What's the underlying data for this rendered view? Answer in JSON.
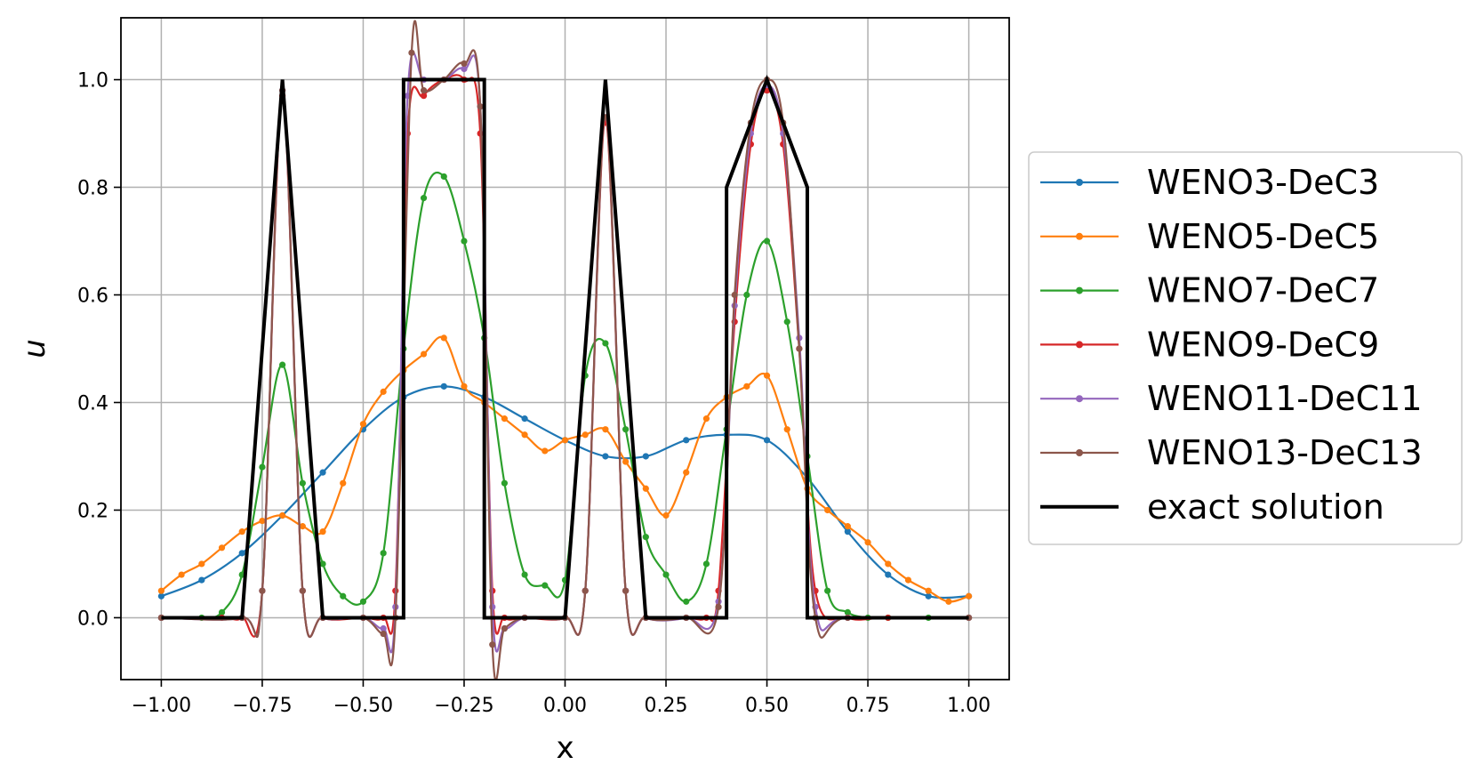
{
  "chart_data": {
    "type": "line",
    "xlabel": "x",
    "ylabel": "u",
    "xlim": [
      -1.1,
      1.1
    ],
    "ylim": [
      -0.115,
      1.115
    ],
    "xticks": [
      -1.0,
      -0.75,
      -0.5,
      -0.25,
      0.0,
      0.25,
      0.5,
      0.75,
      1.0
    ],
    "xtick_labels": [
      "−1.00",
      "−0.75",
      "−0.50",
      "−0.25",
      "0.00",
      "0.25",
      "0.50",
      "0.75",
      "1.00"
    ],
    "yticks": [
      0.0,
      0.2,
      0.4,
      0.6,
      0.8,
      1.0
    ],
    "ytick_labels": [
      "0.0",
      "0.2",
      "0.4",
      "0.6",
      "0.8",
      "1.0"
    ],
    "grid": true,
    "legend": "outside-right",
    "series": [
      {
        "name": "WENO3-DeC3",
        "color": "#1f77b4",
        "style": "dots",
        "x": [
          -1.0,
          -0.9,
          -0.8,
          -0.7,
          -0.6,
          -0.5,
          -0.4,
          -0.3,
          -0.2,
          -0.1,
          0.0,
          0.1,
          0.2,
          0.3,
          0.4,
          0.5,
          0.6,
          0.7,
          0.8,
          0.9,
          1.0
        ],
        "y": [
          0.04,
          0.07,
          0.12,
          0.19,
          0.27,
          0.35,
          0.41,
          0.43,
          0.41,
          0.37,
          0.33,
          0.3,
          0.3,
          0.33,
          0.34,
          0.33,
          0.26,
          0.16,
          0.08,
          0.04,
          0.04
        ]
      },
      {
        "name": "WENO5-DeC5",
        "color": "#ff7f0e",
        "style": "dots",
        "x": [
          -1.0,
          -0.95,
          -0.9,
          -0.85,
          -0.8,
          -0.75,
          -0.7,
          -0.65,
          -0.6,
          -0.55,
          -0.5,
          -0.45,
          -0.4,
          -0.35,
          -0.3,
          -0.25,
          -0.2,
          -0.15,
          -0.1,
          -0.05,
          0.0,
          0.05,
          0.1,
          0.15,
          0.2,
          0.25,
          0.3,
          0.35,
          0.4,
          0.45,
          0.5,
          0.55,
          0.6,
          0.65,
          0.7,
          0.75,
          0.8,
          0.85,
          0.9,
          0.95,
          1.0
        ],
        "y": [
          0.05,
          0.08,
          0.1,
          0.13,
          0.16,
          0.18,
          0.19,
          0.17,
          0.16,
          0.25,
          0.36,
          0.42,
          0.46,
          0.49,
          0.52,
          0.43,
          0.4,
          0.37,
          0.34,
          0.31,
          0.33,
          0.34,
          0.35,
          0.29,
          0.24,
          0.19,
          0.27,
          0.37,
          0.41,
          0.43,
          0.45,
          0.35,
          0.24,
          0.2,
          0.17,
          0.14,
          0.1,
          0.07,
          0.05,
          0.03,
          0.04
        ]
      },
      {
        "name": "WENO7-DeC7",
        "color": "#2ca02c",
        "style": "dots",
        "x": [
          -1.0,
          -0.9,
          -0.85,
          -0.8,
          -0.75,
          -0.7,
          -0.65,
          -0.6,
          -0.55,
          -0.5,
          -0.45,
          -0.4,
          -0.35,
          -0.3,
          -0.25,
          -0.2,
          -0.15,
          -0.1,
          -0.05,
          0.0,
          0.05,
          0.1,
          0.15,
          0.2,
          0.25,
          0.3,
          0.35,
          0.4,
          0.45,
          0.5,
          0.55,
          0.6,
          0.65,
          0.7,
          0.75,
          0.8,
          0.9,
          1.0
        ],
        "y": [
          0.0,
          0.0,
          0.01,
          0.08,
          0.28,
          0.47,
          0.25,
          0.1,
          0.04,
          0.03,
          0.12,
          0.5,
          0.78,
          0.82,
          0.7,
          0.52,
          0.25,
          0.08,
          0.06,
          0.07,
          0.45,
          0.51,
          0.35,
          0.15,
          0.08,
          0.03,
          0.1,
          0.35,
          0.6,
          0.7,
          0.55,
          0.3,
          0.05,
          0.01,
          0.0,
          0.0,
          0.0,
          0.0
        ]
      },
      {
        "name": "WENO9-DeC9",
        "color": "#d62728",
        "style": "dots",
        "x": [
          -1.0,
          -0.85,
          -0.8,
          -0.75,
          -0.7,
          -0.65,
          -0.6,
          -0.5,
          -0.45,
          -0.42,
          -0.39,
          -0.35,
          -0.3,
          -0.25,
          -0.21,
          -0.18,
          -0.15,
          -0.1,
          0.0,
          0.05,
          0.1,
          0.15,
          0.2,
          0.3,
          0.35,
          0.38,
          0.42,
          0.46,
          0.5,
          0.54,
          0.58,
          0.62,
          0.7,
          0.8,
          1.0
        ],
        "y": [
          0.0,
          0.0,
          0.0,
          0.05,
          0.97,
          0.05,
          0.0,
          0.0,
          0.0,
          0.05,
          0.9,
          0.97,
          1.0,
          1.0,
          0.9,
          0.05,
          0.0,
          0.0,
          0.0,
          0.05,
          0.92,
          0.05,
          0.0,
          0.0,
          0.0,
          0.05,
          0.55,
          0.88,
          0.98,
          0.88,
          0.5,
          0.05,
          0.0,
          0.0,
          0.0
        ]
      },
      {
        "name": "WENO11-DeC11",
        "color": "#9467bd",
        "style": "dots",
        "x": [
          -1.0,
          -0.8,
          -0.75,
          -0.7,
          -0.65,
          -0.6,
          -0.5,
          -0.45,
          -0.42,
          -0.39,
          -0.35,
          -0.3,
          -0.25,
          -0.21,
          -0.18,
          -0.15,
          -0.1,
          0.0,
          0.05,
          0.1,
          0.15,
          0.2,
          0.3,
          0.38,
          0.42,
          0.46,
          0.5,
          0.54,
          0.58,
          0.62,
          0.7,
          1.0
        ],
        "y": [
          0.0,
          0.0,
          0.05,
          0.98,
          0.05,
          0.0,
          0.0,
          -0.02,
          0.02,
          0.97,
          1.0,
          1.0,
          1.02,
          0.95,
          0.02,
          -0.02,
          0.0,
          0.0,
          0.05,
          0.93,
          0.05,
          0.0,
          0.0,
          0.03,
          0.58,
          0.9,
          0.99,
          0.9,
          0.52,
          0.02,
          0.0,
          0.0
        ]
      },
      {
        "name": "WENO13-DeC13",
        "color": "#8c564b",
        "style": "dots",
        "x": [
          -1.0,
          -0.8,
          -0.75,
          -0.7,
          -0.65,
          -0.6,
          -0.5,
          -0.45,
          -0.42,
          -0.38,
          -0.35,
          -0.3,
          -0.25,
          -0.21,
          -0.18,
          -0.15,
          -0.1,
          0.0,
          0.05,
          0.1,
          0.15,
          0.2,
          0.3,
          0.38,
          0.42,
          0.46,
          0.5,
          0.54,
          0.58,
          0.62,
          0.7,
          1.0
        ],
        "y": [
          0.0,
          0.0,
          0.05,
          0.98,
          0.05,
          0.0,
          0.0,
          -0.03,
          0.0,
          1.05,
          0.98,
          1.0,
          1.03,
          0.95,
          -0.05,
          -0.02,
          0.0,
          0.0,
          0.05,
          0.93,
          0.05,
          0.0,
          0.0,
          0.02,
          0.6,
          0.92,
          1.0,
          0.92,
          0.5,
          0.0,
          0.0,
          0.0
        ]
      },
      {
        "name": "exact solution",
        "color": "#000000",
        "style": "line",
        "x": [
          -1.0,
          -0.8,
          -0.7,
          -0.6,
          -0.4,
          -0.4,
          -0.2,
          -0.2,
          0.0,
          0.1,
          0.2,
          0.4,
          0.4,
          0.5,
          0.6,
          0.6,
          1.0
        ],
        "y": [
          0.0,
          0.0,
          1.0,
          0.0,
          0.0,
          1.0,
          1.0,
          0.0,
          0.0,
          1.0,
          0.0,
          0.0,
          0.8,
          1.0,
          0.8,
          0.0,
          0.0
        ]
      }
    ]
  }
}
